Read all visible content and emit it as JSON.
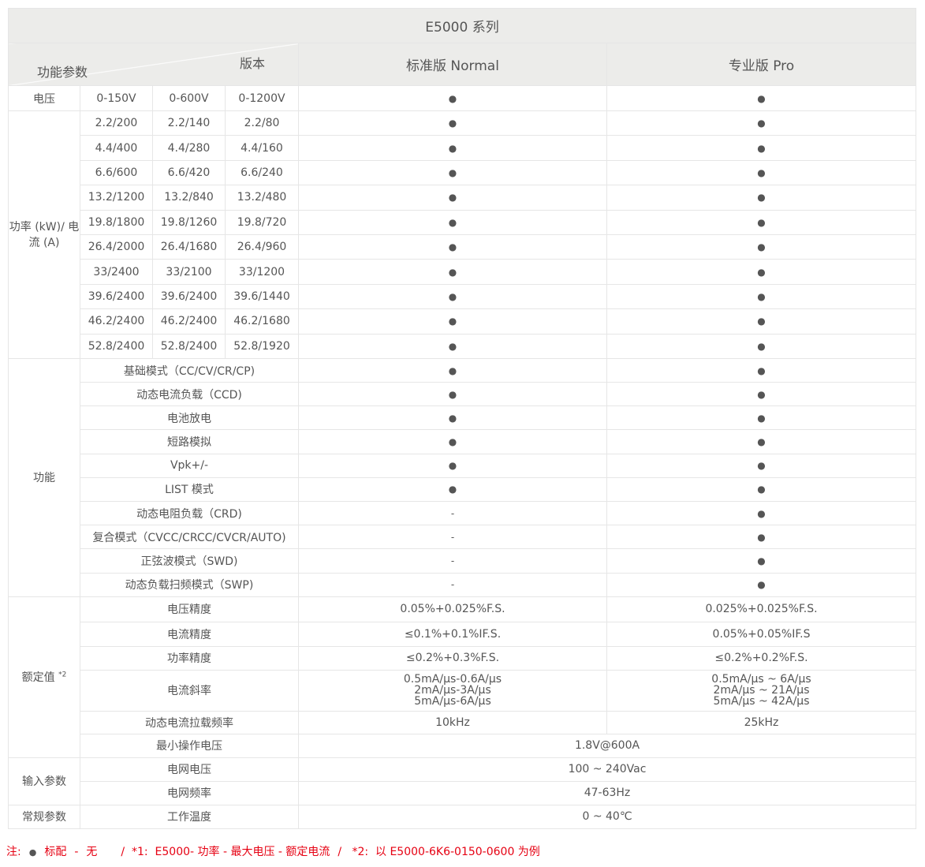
{
  "header": {
    "series": "E5000 系列",
    "params_label": "功能参数",
    "version_label": "版本",
    "normal": "标准版 Normal",
    "pro": "专业版 Pro"
  },
  "voltage": {
    "label": "电压",
    "ranges": [
      "0-150V",
      "0-600V",
      "0-1200V"
    ],
    "normal": "●",
    "pro": "●"
  },
  "power": {
    "label": "功率 (kW)/ 电流 (A)",
    "rows": [
      [
        "2.2/200",
        "2.2/140",
        "2.2/80"
      ],
      [
        "4.4/400",
        "4.4/280",
        "4.4/160"
      ],
      [
        "6.6/600",
        "6.6/420",
        "6.6/240"
      ],
      [
        "13.2/1200",
        "13.2/840",
        "13.2/480"
      ],
      [
        "19.8/1800",
        "19.8/1260",
        "19.8/720"
      ],
      [
        "26.4/2000",
        "26.4/1680",
        "26.4/960"
      ],
      [
        "33/2400",
        "33/2100",
        "33/1200"
      ],
      [
        "39.6/2400",
        "39.6/2400",
        "39.6/1440"
      ],
      [
        "46.2/2400",
        "46.2/2400",
        "46.2/1680"
      ],
      [
        "52.8/2400",
        "52.8/2400",
        "52.8/1920"
      ]
    ],
    "normal": "●",
    "pro": "●"
  },
  "functions": {
    "label": "功能",
    "rows": [
      {
        "name": "基础模式（CC/CV/CR/CP)",
        "normal": "●",
        "pro": "●"
      },
      {
        "name": "动态电流负载（CCD)",
        "normal": "●",
        "pro": "●"
      },
      {
        "name": "电池放电",
        "normal": "●",
        "pro": "●"
      },
      {
        "name": "短路模拟",
        "normal": "●",
        "pro": "●"
      },
      {
        "name": "Vpk+/-",
        "normal": "●",
        "pro": "●"
      },
      {
        "name": "LIST 模式",
        "normal": "●",
        "pro": "●"
      },
      {
        "name": "动态电阻负载（CRD)",
        "normal": "-",
        "pro": "●"
      },
      {
        "name": "复合模式（CVCC/CRCC/CVCR/AUTO)",
        "normal": "-",
        "pro": "●"
      },
      {
        "name": "正弦波模式（SWD)",
        "normal": "-",
        "pro": "●"
      },
      {
        "name": "动态负载扫频模式（SWP)",
        "normal": "-",
        "pro": "●"
      }
    ]
  },
  "rated": {
    "label": "额定值",
    "sup": "*2",
    "rows": [
      {
        "name": "电压精度",
        "normal": "0.05%+0.025%F.S.",
        "pro": "0.025%+0.025%F.S."
      },
      {
        "name": "电流精度",
        "normal": "≤0.1%+0.1%IF.S.",
        "pro": "0.05%+0.05%IF.S"
      },
      {
        "name": "功率精度",
        "normal": "≤0.2%+0.3%F.S.",
        "pro": "≤0.2%+0.2%F.S."
      },
      {
        "name": "电流斜率",
        "normal": [
          "0.5mA/μs-0.6A/μs",
          "2mA/μs-3A/μs",
          "5mA/μs-6A/μs"
        ],
        "pro": [
          "0.5mA/μs ~ 6A/μs",
          "2mA/μs ~ 21A/μs",
          "5mA/μs ~ 42A/μs"
        ]
      },
      {
        "name": "动态电流拉载频率",
        "normal": "10kHz",
        "pro": "25kHz"
      },
      {
        "name": "最小操作电压",
        "both": "1.8V@600A"
      }
    ]
  },
  "input": {
    "label": "输入参数",
    "rows": [
      {
        "name": "电网电压",
        "both": "100 ~ 240Vac"
      },
      {
        "name": "电网频率",
        "both": "47-63Hz"
      }
    ]
  },
  "general": {
    "label": "常规参数",
    "rows": [
      {
        "name": "工作温度",
        "both": "0 ~ 40℃"
      }
    ]
  },
  "note": {
    "prefix": "注:",
    "dot": "●",
    "std": "标配",
    "dash": "-",
    "none": "无",
    "n1": "/  *1:  E5000- 功率 - 最大电压 - 额定电流",
    "n2": "/   *2:  以 E5000-6K6-0150-0600 为例"
  },
  "colors": {
    "header_bg": "#ececea",
    "note": "#e60012",
    "border": "#e6e6e6"
  }
}
